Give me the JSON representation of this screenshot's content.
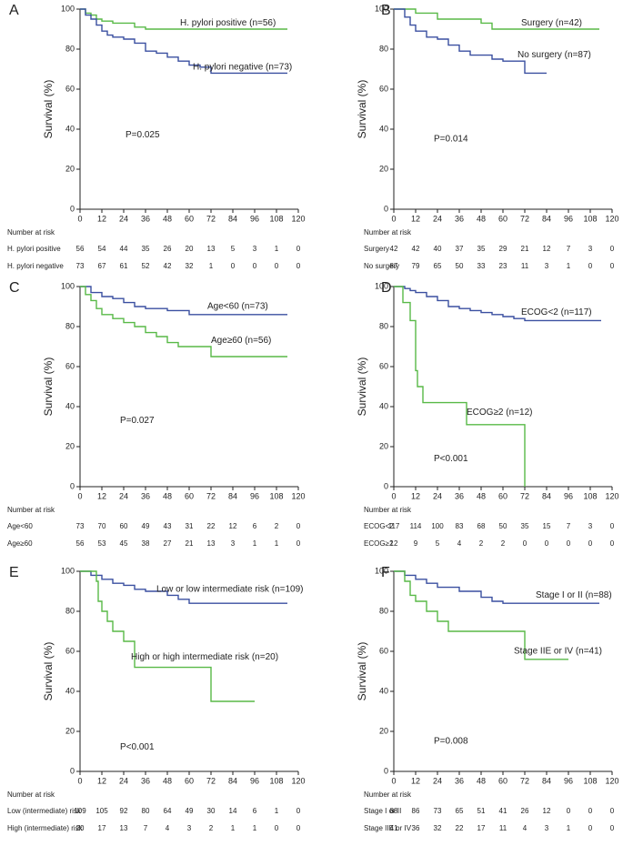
{
  "chart_data": [
    {
      "type": "step",
      "label": "A",
      "ylabel": "Survival (%)",
      "xlim": [
        0,
        120
      ],
      "ylim": [
        0,
        100
      ],
      "xticks": [
        0,
        12,
        24,
        36,
        48,
        60,
        72,
        84,
        96,
        108,
        120
      ],
      "yticks": [
        0,
        20,
        40,
        60,
        80,
        100
      ],
      "annotation": "P=0.025",
      "series": [
        {
          "name": "H. pylori positive (n=56)",
          "color": "#58b947",
          "x": [
            0,
            3,
            6,
            9,
            12,
            18,
            30,
            36,
            114
          ],
          "values": [
            100,
            98,
            97,
            95,
            94,
            93,
            91,
            90,
            90
          ]
        },
        {
          "name": "H. pylori negative (n=73)",
          "color": "#3a4fa0",
          "x": [
            0,
            3,
            6,
            9,
            12,
            15,
            18,
            24,
            30,
            36,
            42,
            48,
            54,
            60,
            66,
            72,
            114
          ],
          "values": [
            100,
            97,
            95,
            92,
            89,
            87,
            86,
            85,
            83,
            79,
            78,
            76,
            74,
            72,
            71,
            68,
            68
          ]
        }
      ],
      "risk_table": {
        "title": "Number at risk",
        "rows": [
          {
            "name": "H. pylori positive",
            "values": [
              56,
              54,
              44,
              35,
              26,
              20,
              13,
              5,
              3,
              1,
              0
            ]
          },
          {
            "name": "H. pylori negative",
            "values": [
              73,
              67,
              61,
              52,
              42,
              32,
              1,
              0,
              0,
              0,
              0
            ]
          }
        ]
      }
    },
    {
      "type": "step",
      "label": "B",
      "ylabel": "Survival (%)",
      "xlim": [
        0,
        120
      ],
      "ylim": [
        0,
        100
      ],
      "xticks": [
        0,
        12,
        24,
        36,
        48,
        60,
        72,
        84,
        96,
        108,
        120
      ],
      "yticks": [
        0,
        20,
        40,
        60,
        80,
        100
      ],
      "annotation": "P=0.014",
      "series": [
        {
          "name": "Surgery (n=42)",
          "color": "#58b947",
          "x": [
            0,
            12,
            24,
            48,
            54,
            113
          ],
          "values": [
            100,
            98,
            95,
            93,
            90,
            90
          ]
        },
        {
          "name": "No surgery (n=87)",
          "color": "#3a4fa0",
          "x": [
            0,
            6,
            9,
            12,
            18,
            24,
            30,
            36,
            42,
            54,
            60,
            72,
            84
          ],
          "values": [
            100,
            96,
            92,
            89,
            86,
            85,
            82,
            79,
            77,
            75,
            74,
            68,
            68
          ]
        }
      ],
      "risk_table": {
        "title": "Number at risk",
        "rows": [
          {
            "name": "Surgery",
            "values": [
              42,
              42,
              40,
              37,
              35,
              29,
              21,
              12,
              7,
              3,
              0
            ]
          },
          {
            "name": "No surgery",
            "values": [
              87,
              79,
              65,
              50,
              33,
              23,
              11,
              3,
              1,
              0,
              0
            ]
          }
        ]
      }
    },
    {
      "type": "step",
      "label": "C",
      "ylabel": "Survival (%)",
      "xlim": [
        0,
        120
      ],
      "ylim": [
        0,
        100
      ],
      "xticks": [
        0,
        12,
        24,
        36,
        48,
        60,
        72,
        84,
        96,
        108,
        120
      ],
      "yticks": [
        0,
        20,
        40,
        60,
        80,
        100
      ],
      "annotation": "P=0.027",
      "series": [
        {
          "name": "Age<60 (n=73)",
          "color": "#3a4fa0",
          "x": [
            0,
            6,
            12,
            18,
            24,
            30,
            36,
            48,
            60,
            114
          ],
          "values": [
            100,
            97,
            95,
            94,
            92,
            90,
            89,
            88,
            86,
            86
          ]
        },
        {
          "name": "Age≥60 (n=56)",
          "color": "#58b947",
          "x": [
            0,
            3,
            6,
            9,
            12,
            18,
            24,
            30,
            36,
            42,
            48,
            54,
            72,
            114
          ],
          "values": [
            100,
            96,
            93,
            89,
            86,
            84,
            82,
            80,
            77,
            75,
            72,
            70,
            65,
            65
          ]
        }
      ],
      "risk_table": {
        "title": "Number at risk",
        "rows": [
          {
            "name": "Age<60",
            "values": [
              73,
              70,
              60,
              49,
              43,
              31,
              22,
              12,
              6,
              2,
              0
            ]
          },
          {
            "name": "Age≥60",
            "values": [
              56,
              53,
              45,
              38,
              27,
              21,
              13,
              3,
              1,
              1,
              0
            ]
          }
        ]
      }
    },
    {
      "type": "step",
      "label": "D",
      "ylabel": "Survival (%)",
      "xlim": [
        0,
        120
      ],
      "ylim": [
        0,
        100
      ],
      "xticks": [
        0,
        12,
        24,
        36,
        48,
        60,
        72,
        84,
        96,
        108,
        120
      ],
      "yticks": [
        0,
        20,
        40,
        60,
        80,
        100
      ],
      "annotation": "P<0.001",
      "series": [
        {
          "name": "ECOG<2 (n=117)",
          "color": "#3a4fa0",
          "x": [
            0,
            6,
            9,
            12,
            18,
            24,
            30,
            36,
            42,
            48,
            54,
            60,
            66,
            72,
            114
          ],
          "values": [
            100,
            99,
            98,
            97,
            95,
            93,
            90,
            89,
            88,
            87,
            86,
            85,
            84,
            83,
            83
          ]
        },
        {
          "name": "ECOG≥2 (n=12)",
          "color": "#58b947",
          "x": [
            0,
            5,
            9,
            12,
            13,
            16,
            40,
            72
          ],
          "values": [
            100,
            92,
            83,
            58,
            50,
            42,
            31,
            0
          ]
        }
      ],
      "risk_table": {
        "title": "Number at risk",
        "rows": [
          {
            "name": "ECOG<2",
            "values": [
              117,
              114,
              100,
              83,
              68,
              50,
              35,
              15,
              7,
              3,
              0
            ]
          },
          {
            "name": "ECOG≥2",
            "values": [
              12,
              9,
              5,
              4,
              2,
              2,
              0,
              0,
              0,
              0,
              0
            ]
          }
        ]
      }
    },
    {
      "type": "step",
      "label": "E",
      "ylabel": "Survival (%)",
      "xlim": [
        0,
        120
      ],
      "ylim": [
        0,
        100
      ],
      "xticks": [
        0,
        12,
        24,
        36,
        48,
        60,
        72,
        84,
        96,
        108,
        120
      ],
      "yticks": [
        0,
        20,
        40,
        60,
        80,
        100
      ],
      "annotation": "P<0.001",
      "series": [
        {
          "name": "Low or low intermediate risk (n=109)",
          "color": "#3a4fa0",
          "x": [
            0,
            6,
            12,
            18,
            24,
            30,
            36,
            48,
            54,
            60,
            114
          ],
          "values": [
            100,
            98,
            96,
            94,
            93,
            91,
            90,
            88,
            86,
            84,
            84
          ]
        },
        {
          "name": "High or high intermediate risk (n=20)",
          "color": "#58b947",
          "x": [
            0,
            9,
            10,
            12,
            15,
            18,
            24,
            30,
            72,
            96
          ],
          "values": [
            100,
            95,
            85,
            80,
            75,
            70,
            65,
            52,
            35,
            35
          ]
        }
      ],
      "risk_table": {
        "title": "Number at risk",
        "rows": [
          {
            "name": "Low (intermediate) risk",
            "values": [
              109,
              105,
              92,
              80,
              64,
              49,
              30,
              14,
              6,
              1,
              0
            ]
          },
          {
            "name": "High (intermediate) risk",
            "values": [
              20,
              17,
              13,
              7,
              4,
              3,
              2,
              1,
              1,
              0,
              0
            ]
          }
        ]
      }
    },
    {
      "type": "step",
      "label": "F",
      "ylabel": "Survival (%)",
      "xlim": [
        0,
        120
      ],
      "ylim": [
        0,
        100
      ],
      "xticks": [
        0,
        12,
        24,
        36,
        48,
        60,
        72,
        84,
        96,
        108,
        120
      ],
      "yticks": [
        0,
        20,
        40,
        60,
        80,
        100
      ],
      "annotation": "P=0.008",
      "series": [
        {
          "name": "Stage I or II (n=88)",
          "color": "#3a4fa0",
          "x": [
            0,
            6,
            12,
            18,
            24,
            36,
            48,
            54,
            60,
            113
          ],
          "values": [
            100,
            98,
            96,
            94,
            92,
            90,
            87,
            85,
            84,
            84
          ]
        },
        {
          "name": "Stage IIE or IV (n=41)",
          "color": "#58b947",
          "x": [
            0,
            6,
            9,
            12,
            18,
            24,
            30,
            72,
            96
          ],
          "values": [
            100,
            95,
            88,
            85,
            80,
            75,
            70,
            56,
            56
          ]
        }
      ],
      "risk_table": {
        "title": "Number at risk",
        "rows": [
          {
            "name": "Stage I or II",
            "values": [
              88,
              86,
              73,
              65,
              51,
              41,
              26,
              12,
              0,
              0,
              0
            ]
          },
          {
            "name": "Stage IIE or IV",
            "values": [
              41,
              36,
              32,
              22,
              17,
              11,
              4,
              3,
              1,
              0,
              0
            ]
          }
        ]
      }
    }
  ]
}
